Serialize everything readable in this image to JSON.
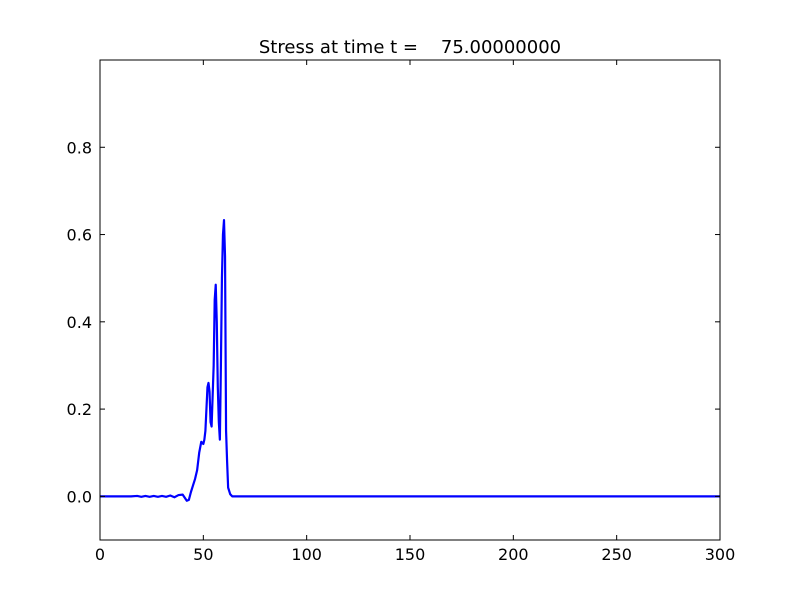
{
  "chart_data": {
    "type": "line",
    "title": "Stress at time t =    75.00000000",
    "x": [
      0,
      15,
      18,
      20,
      22,
      24,
      26,
      28,
      30,
      32,
      34,
      36,
      38,
      40,
      42,
      43,
      44,
      45,
      46,
      47,
      48,
      49,
      50,
      50.5,
      51,
      52,
      52.5,
      53,
      53.5,
      54,
      55,
      55.5,
      56,
      56.5,
      57,
      57.5,
      58,
      58.5,
      59,
      59.5,
      60,
      60.5,
      61,
      61.5,
      62,
      63,
      64,
      300
    ],
    "series": [
      {
        "name": "stress",
        "color": "#0000ff",
        "values": [
          0,
          0,
          0.001,
          -0.001,
          0.001,
          -0.001,
          0.001,
          -0.001,
          0.001,
          -0.001,
          0.002,
          -0.002,
          0.003,
          0.004,
          -0.01,
          -0.008,
          0.01,
          0.025,
          0.04,
          0.06,
          0.1,
          0.125,
          0.12,
          0.13,
          0.15,
          0.25,
          0.26,
          0.24,
          0.17,
          0.16,
          0.3,
          0.45,
          0.485,
          0.4,
          0.25,
          0.17,
          0.13,
          0.3,
          0.5,
          0.6,
          0.633,
          0.55,
          0.15,
          0.08,
          0.02,
          0.005,
          0,
          0
        ]
      }
    ],
    "xlim": [
      0,
      300
    ],
    "ylim": [
      -0.1,
      1.0
    ],
    "xticks": [
      0,
      50,
      100,
      150,
      200,
      250,
      300
    ],
    "yticks": [
      {
        "value": 0,
        "label": "0.0"
      },
      0.2,
      0.4,
      0.6,
      0.8
    ]
  }
}
